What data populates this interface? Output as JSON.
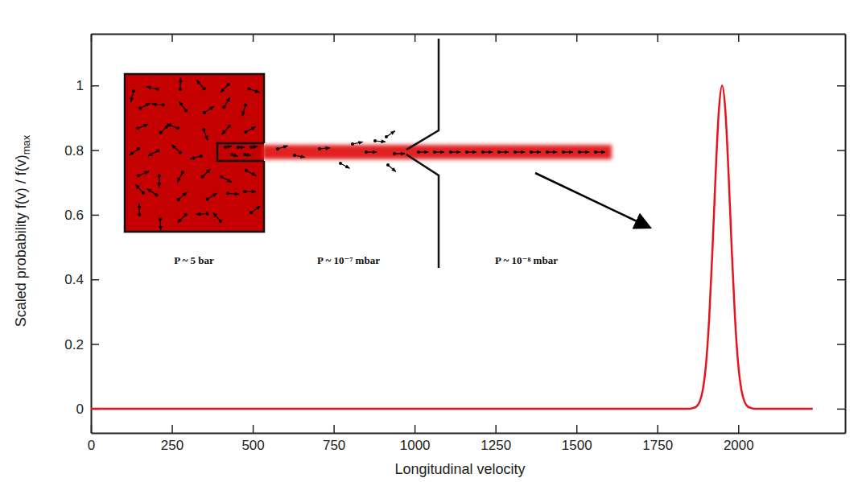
{
  "chart_data": {
    "type": "line",
    "x_label": "Longitudinal velocity",
    "y_label": "Scaled probability f(v) / f(v)",
    "y_label_subscript": "max",
    "annotations": [
      "P ~ 5 bar",
      "P ~ 10⁻⁷ mbar",
      "P ~ 10⁻⁸ mbar"
    ],
    "x": [
      0,
      500,
      1000,
      1500,
      1800,
      1850,
      1860,
      1870,
      1880,
      1890,
      1900,
      1910,
      1920,
      1930,
      1940,
      1950,
      1960,
      1970,
      1980,
      1990,
      2000,
      2010,
      2020,
      2030,
      2040,
      2050,
      2100,
      2230
    ],
    "values": [
      0,
      0,
      0,
      0,
      0,
      0,
      0.002,
      0.006,
      0.02,
      0.056,
      0.135,
      0.278,
      0.487,
      0.726,
      0.923,
      1,
      0.923,
      0.726,
      0.487,
      0.278,
      0.135,
      0.056,
      0.02,
      0.006,
      0.002,
      0,
      0,
      0
    ],
    "color": "#e8131c",
    "xlim": [
      0,
      2330
    ],
    "xticks": [
      0,
      250,
      500,
      750,
      1000,
      1250,
      1500,
      1750,
      2000
    ],
    "ylim": [
      -0.075,
      1.16
    ],
    "yticks": [
      0,
      0.2,
      0.4,
      0.6,
      0.8,
      1
    ],
    "grid": false
  }
}
